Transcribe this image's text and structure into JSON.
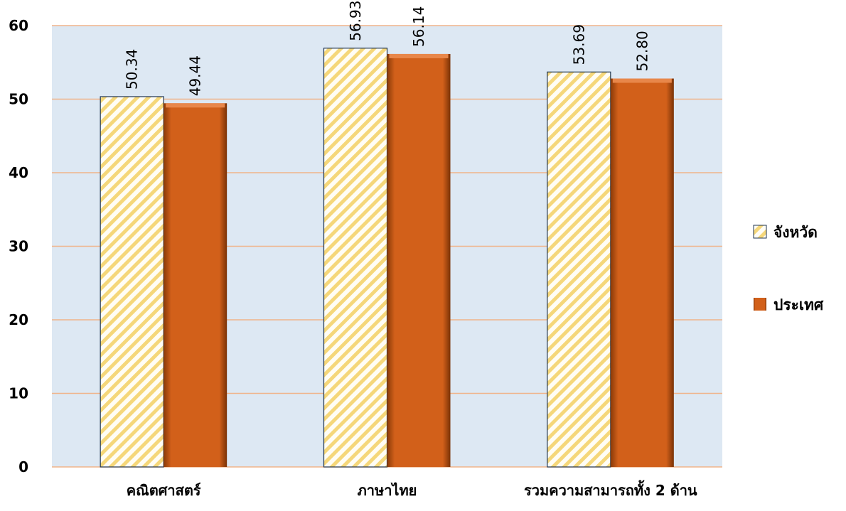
{
  "chart_data": {
    "type": "bar",
    "categories": [
      "คณิตศาสตร์",
      "ภาษาไทย",
      "รวมความสามารถทั้ง 2 ด้าน"
    ],
    "series": [
      {
        "name": "จังหวัด",
        "values": [
          50.34,
          56.93,
          53.69
        ],
        "value_labels": [
          "50.34",
          "56.93",
          "53.69"
        ],
        "color": "#f5d77a",
        "pattern": "diagonal-stripes"
      },
      {
        "name": "ประเทศ",
        "values": [
          49.44,
          56.14,
          52.8
        ],
        "value_labels": [
          "49.44",
          "56.14",
          "52.80"
        ],
        "color": "#d2601a",
        "pattern": "solid-bevel"
      }
    ],
    "ylim": [
      0,
      60
    ],
    "yticks": [
      0,
      10,
      20,
      30,
      40,
      50,
      60
    ],
    "grid": true,
    "plot_background": "#dde8f3",
    "gridline_color": "#f0b48a",
    "legend_position": "right",
    "title": "",
    "xlabel": "",
    "ylabel": ""
  }
}
